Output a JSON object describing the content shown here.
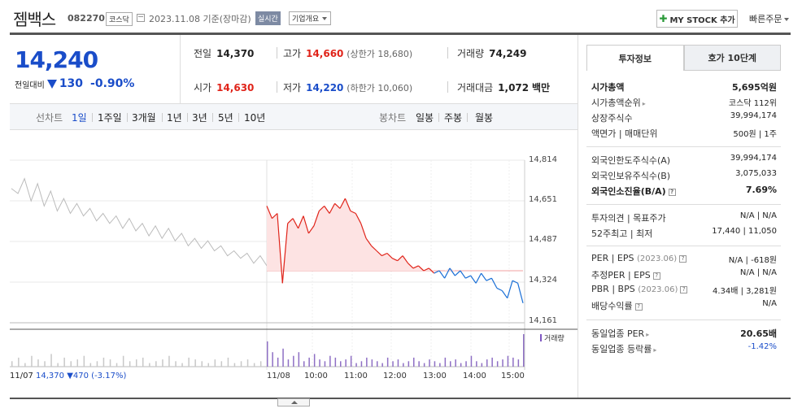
{
  "header": {
    "name": "젬백스",
    "code": "082270",
    "market": "코스닥",
    "date_text": "2023.11.08 기준(장마감)",
    "realtime_label": "실시간",
    "company_label": "기업개요",
    "mystock_label": "MY STOCK 추가",
    "quick_order_label": "빠른주문"
  },
  "price": {
    "current": "14,240",
    "diff_label": "전일대비",
    "diff_value": "130",
    "diff_pct": "-0.90%"
  },
  "stats": {
    "prev_label": "전일",
    "prev_value": "14,370",
    "high_label": "고가",
    "high_value": "14,660",
    "upper_limit": "(상한가 18,680)",
    "volume_label": "거래량",
    "volume_value": "74,249",
    "open_label": "시가",
    "open_value": "14,630",
    "low_label": "저가",
    "low_value": "14,220",
    "lower_limit": "(하한가 10,060)",
    "amount_label": "거래대금",
    "amount_value": "1,072",
    "amount_unit": "백만"
  },
  "toolbar": {
    "line_label": "선차트",
    "line_periods": [
      "1일",
      "1주일",
      "3개월",
      "1년",
      "3년",
      "5년",
      "10년"
    ],
    "candle_label": "봉차트",
    "candle_periods": [
      "일봉",
      "주봉",
      "월봉"
    ]
  },
  "chart_data": {
    "type": "line",
    "y_ticks": [
      "14,814",
      "14,651",
      "14,487",
      "14,324",
      "14,161"
    ],
    "ylim": [
      14161,
      14814
    ],
    "x_ticks": [
      "11/07",
      "11/08",
      "10:00",
      "11:00",
      "12:00",
      "13:00",
      "14:00",
      "15:00"
    ],
    "prev_close": 14370,
    "series": [
      {
        "values": [
          14700,
          14680,
          14740,
          14650,
          14720,
          14630,
          14690,
          14610,
          14660,
          14600,
          14640,
          14590,
          14620,
          14570,
          14600,
          14560,
          14590,
          14540,
          14580,
          14530,
          14560,
          14510,
          14550,
          14500,
          14540,
          14490,
          14520,
          14470,
          14500,
          14460,
          14490,
          14450,
          14470,
          14430,
          14450,
          14420,
          14440,
          14400,
          14430,
          14390
        ]
      },
      {
        "values": [
          14630,
          14580,
          14600,
          14320,
          14560,
          14580,
          14540,
          14590,
          14520,
          14550,
          14610,
          14630,
          14600,
          14640,
          14620,
          14660,
          14610,
          14600,
          14560,
          14500,
          14470,
          14450,
          14430,
          14440,
          14420,
          14410,
          14430,
          14400,
          14380,
          14390,
          14370,
          14380,
          14360,
          14370,
          14340,
          14380,
          14350,
          14370,
          14340,
          14350,
          14320,
          14360,
          14330,
          14340,
          14300,
          14290,
          14260,
          14330,
          14320,
          14240
        ]
      }
    ],
    "volume_label": "거래량",
    "volume_prev": [
      3,
      5,
      2,
      6,
      4,
      3,
      7,
      2,
      5,
      3,
      4,
      6,
      2,
      3,
      5,
      4,
      2,
      6,
      3,
      4,
      5,
      2,
      3,
      4,
      6,
      3,
      2,
      5,
      4,
      3,
      2,
      4,
      3,
      5,
      2,
      3,
      4,
      2,
      3,
      5
    ],
    "volume_today": [
      14,
      8,
      5,
      10,
      4,
      6,
      8,
      3,
      5,
      7,
      4,
      3,
      6,
      5,
      3,
      4,
      6,
      2,
      3,
      5,
      4,
      3,
      2,
      5,
      3,
      4,
      2,
      3,
      5,
      3,
      2,
      4,
      3,
      2,
      5,
      3,
      4,
      2,
      3,
      6,
      3,
      2,
      4,
      5,
      3,
      4,
      6,
      5,
      4,
      18
    ],
    "prev_info": {
      "date": "11/07",
      "price": "14,370",
      "change": "▼470",
      "pct": "(-3.17%)"
    }
  },
  "panel": {
    "tab_invest": "투자정보",
    "tab_hoga": "호가 10단계",
    "market_cap_label": "시가총액",
    "market_cap_value": "5,695억원",
    "market_cap_rank_label": "시가총액순위",
    "market_cap_rank_value": "코스닥 112위",
    "shares_label": "상장주식수",
    "shares_value": "39,994,174",
    "par_label": "액면가 | 매매단위",
    "par_value": "500원 | 1주",
    "foreign_limit_label": "외국인한도주식수(A)",
    "foreign_limit_value": "39,994,174",
    "foreign_hold_label": "외국인보유주식수(B)",
    "foreign_hold_value": "3,075,033",
    "foreign_ratio_label": "외국인소진율(B/A)",
    "foreign_ratio_value": "7.69%",
    "opinion_label": "투자의견 | 목표주가",
    "opinion_value": "N/A | N/A",
    "week52_label": "52주최고 | 최저",
    "week52_value": "17,440 | 11,050",
    "per_label": "PER | EPS",
    "per_date": "(2023.06)",
    "per_value": "N/A | -618원",
    "est_per_label": "추정PER | EPS",
    "est_per_value": "N/A | N/A",
    "pbr_label": "PBR | BPS",
    "pbr_date": "(2023.06)",
    "pbr_value": "4.34배 | 3,281원",
    "dividend_label": "배당수익률",
    "dividend_value": "N/A",
    "industry_per_label": "동일업종 PER",
    "industry_per_value": "20.65배",
    "industry_rate_label": "동일업종 등락률",
    "industry_rate_value": "-1.42%"
  }
}
